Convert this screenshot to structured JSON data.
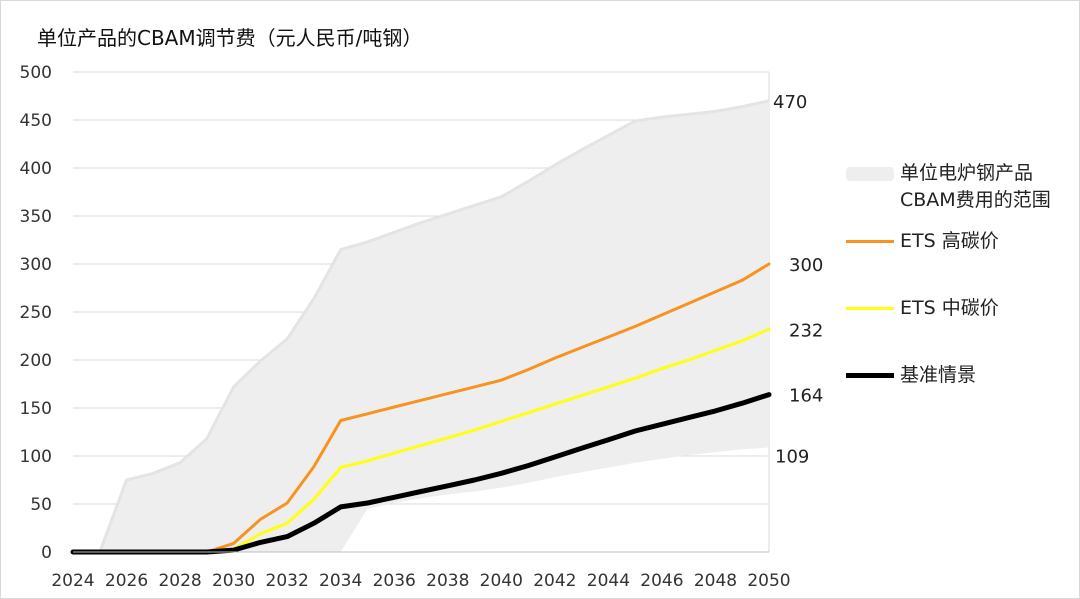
{
  "chart_data": {
    "type": "line",
    "title": "单位产品的CBAM调节费（元人民币/吨钢）",
    "xlabel": "",
    "ylabel": "",
    "xlim": [
      2024,
      2050
    ],
    "ylim": [
      0,
      500
    ],
    "x_ticks": [
      "2024",
      "2026",
      "2028",
      "2030",
      "2032",
      "2034",
      "2036",
      "2038",
      "2040",
      "2042",
      "2044",
      "2046",
      "2048",
      "2050"
    ],
    "y_ticks": [
      "0",
      "50",
      "100",
      "150",
      "200",
      "250",
      "300",
      "350",
      "400",
      "450",
      "500"
    ],
    "grid": true,
    "legend_position": "right",
    "band": {
      "name": "单位电炉钢产品CBAM费用的范围",
      "name_lines": [
        "单位电炉钢产品",
        "CBAM费用的范围"
      ],
      "color": "#eeeeee",
      "edge_color": "#e4e4e4",
      "x": [
        2024,
        2025,
        2026,
        2027,
        2028,
        2029,
        2030,
        2031,
        2032,
        2033,
        2034,
        2035,
        2036,
        2037,
        2038,
        2039,
        2040,
        2041,
        2042,
        2043,
        2044,
        2045,
        2046,
        2047,
        2048,
        2049,
        2050
      ],
      "upper": [
        0,
        0,
        75,
        82,
        93,
        118,
        172,
        199,
        222,
        264,
        315,
        323,
        333,
        343,
        352,
        361,
        370,
        386,
        403,
        419,
        434,
        449,
        453,
        456,
        459,
        464,
        470
      ],
      "lower": [
        0,
        0,
        0,
        0,
        0,
        0,
        0,
        0,
        0,
        0,
        0,
        45,
        51,
        56,
        60,
        63,
        67,
        72,
        78,
        83,
        88,
        93,
        97,
        101,
        104,
        107,
        109
      ]
    },
    "series": [
      {
        "name": "ETS 高碳价",
        "color": "#f7931e",
        "width": 3,
        "x": [
          2024,
          2025,
          2026,
          2027,
          2028,
          2029,
          2030,
          2031,
          2032,
          2033,
          2034,
          2035,
          2036,
          2037,
          2038,
          2039,
          2040,
          2041,
          2042,
          2043,
          2044,
          2045,
          2046,
          2047,
          2048,
          2049,
          2050
        ],
        "values": [
          0,
          0,
          0,
          0,
          0,
          0,
          9,
          34,
          51,
          89,
          137,
          144,
          151,
          158,
          165,
          172,
          179,
          190,
          202,
          213,
          224,
          235,
          247,
          259,
          271,
          283,
          300
        ]
      },
      {
        "name": "ETS 中碳价",
        "color": "#ffff14",
        "width": 3,
        "x": [
          2024,
          2025,
          2026,
          2027,
          2028,
          2029,
          2030,
          2031,
          2032,
          2033,
          2034,
          2035,
          2036,
          2037,
          2038,
          2039,
          2040,
          2041,
          2042,
          2043,
          2044,
          2045,
          2046,
          2047,
          2048,
          2049,
          2050
        ],
        "values": [
          0,
          0,
          0,
          0,
          0,
          0,
          3,
          19,
          30,
          55,
          88,
          95,
          103,
          111,
          119,
          127,
          136,
          145,
          154,
          163,
          172,
          181,
          191,
          200,
          210,
          220,
          232
        ]
      },
      {
        "name": "基准情景",
        "color": "#000000",
        "width": 5,
        "x": [
          2024,
          2025,
          2026,
          2027,
          2028,
          2029,
          2030,
          2031,
          2032,
          2033,
          2034,
          2035,
          2036,
          2037,
          2038,
          2039,
          2040,
          2041,
          2042,
          2043,
          2044,
          2045,
          2046,
          2047,
          2048,
          2049,
          2050
        ],
        "values": [
          0,
          0,
          0,
          0,
          0,
          0,
          2,
          10,
          16,
          30,
          47,
          51,
          57,
          63,
          69,
          75,
          82,
          90,
          99,
          108,
          117,
          126,
          133,
          140,
          147,
          155,
          164
        ]
      }
    ],
    "end_labels": [
      {
        "text": "470",
        "value": 470
      },
      {
        "text": "300",
        "value": 300
      },
      {
        "text": "232",
        "value": 232
      },
      {
        "text": "164",
        "value": 164
      },
      {
        "text": "109",
        "value": 109
      }
    ]
  }
}
